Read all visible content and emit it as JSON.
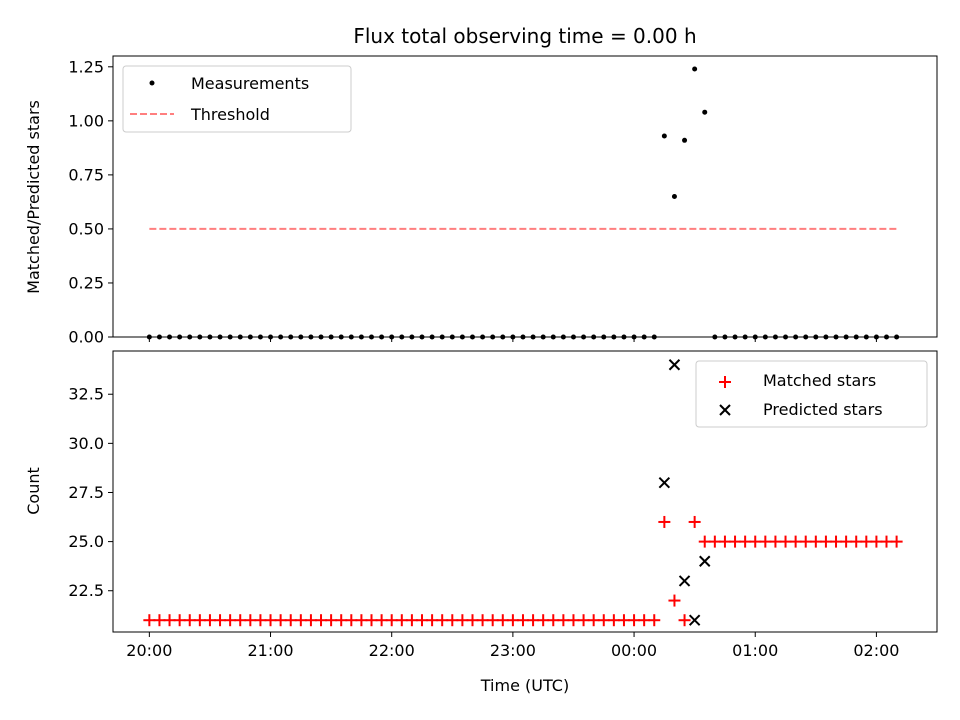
{
  "chart_data": [
    {
      "type": "scatter",
      "title": "Flux total observing time = 0.00 h",
      "xlabel": "",
      "ylabel": "Matched/Predicted stars",
      "xlim": [
        "19:42",
        "02:30"
      ],
      "ylim": [
        0,
        1.3
      ],
      "yticks": [
        "0.00",
        "0.25",
        "0.50",
        "0.75",
        "1.00",
        "1.25"
      ],
      "legend": "upper-left",
      "grid": false,
      "series": [
        {
          "name": "Measurements",
          "marker": "dot",
          "color": "#000000",
          "points": [
            [
              "20:00",
              0
            ],
            [
              "20:05",
              0
            ],
            [
              "20:10",
              0
            ],
            [
              "20:15",
              0
            ],
            [
              "20:20",
              0
            ],
            [
              "20:25",
              0
            ],
            [
              "20:30",
              0
            ],
            [
              "20:35",
              0
            ],
            [
              "20:40",
              0
            ],
            [
              "20:45",
              0
            ],
            [
              "20:50",
              0
            ],
            [
              "20:55",
              0
            ],
            [
              "21:00",
              0
            ],
            [
              "21:05",
              0
            ],
            [
              "21:10",
              0
            ],
            [
              "21:15",
              0
            ],
            [
              "21:20",
              0
            ],
            [
              "21:25",
              0
            ],
            [
              "21:30",
              0
            ],
            [
              "21:35",
              0
            ],
            [
              "21:40",
              0
            ],
            [
              "21:45",
              0
            ],
            [
              "21:50",
              0
            ],
            [
              "21:55",
              0
            ],
            [
              "22:00",
              0
            ],
            [
              "22:05",
              0
            ],
            [
              "22:10",
              0
            ],
            [
              "22:15",
              0
            ],
            [
              "22:20",
              0
            ],
            [
              "22:25",
              0
            ],
            [
              "22:30",
              0
            ],
            [
              "22:35",
              0
            ],
            [
              "22:40",
              0
            ],
            [
              "22:45",
              0
            ],
            [
              "22:50",
              0
            ],
            [
              "22:55",
              0
            ],
            [
              "23:00",
              0
            ],
            [
              "23:05",
              0
            ],
            [
              "23:10",
              0
            ],
            [
              "23:15",
              0
            ],
            [
              "23:20",
              0
            ],
            [
              "23:25",
              0
            ],
            [
              "23:30",
              0
            ],
            [
              "23:35",
              0
            ],
            [
              "23:40",
              0
            ],
            [
              "23:45",
              0
            ],
            [
              "23:50",
              0
            ],
            [
              "23:55",
              0
            ],
            [
              "00:00",
              0
            ],
            [
              "00:05",
              0
            ],
            [
              "00:10",
              0
            ],
            [
              "00:15",
              0.93
            ],
            [
              "00:20",
              0.65
            ],
            [
              "00:25",
              0.91
            ],
            [
              "00:30",
              1.24
            ],
            [
              "00:35",
              1.04
            ],
            [
              "00:40",
              0
            ],
            [
              "00:45",
              0
            ],
            [
              "00:50",
              0
            ],
            [
              "00:55",
              0
            ],
            [
              "01:00",
              0
            ],
            [
              "01:05",
              0
            ],
            [
              "01:10",
              0
            ],
            [
              "01:15",
              0
            ],
            [
              "01:20",
              0
            ],
            [
              "01:25",
              0
            ],
            [
              "01:30",
              0
            ],
            [
              "01:35",
              0
            ],
            [
              "01:40",
              0
            ],
            [
              "01:45",
              0
            ],
            [
              "01:50",
              0
            ],
            [
              "01:55",
              0
            ],
            [
              "02:00",
              0
            ],
            [
              "02:05",
              0
            ],
            [
              "02:10",
              0
            ]
          ]
        },
        {
          "name": "Threshold",
          "line": "dashed",
          "color": "#ff7f7f",
          "points": [
            [
              "20:00",
              0.5
            ],
            [
              "02:10",
              0.5
            ]
          ]
        }
      ]
    },
    {
      "type": "scatter",
      "title": "",
      "xlabel": "Time (UTC)",
      "ylabel": "Count",
      "xlim": [
        "19:42",
        "02:30"
      ],
      "ylim": [
        20.4,
        34.7
      ],
      "yticks": [
        "22.5",
        "25.0",
        "27.5",
        "30.0",
        "32.5"
      ],
      "xticks": [
        "20:00",
        "21:00",
        "22:00",
        "23:00",
        "00:00",
        "01:00",
        "02:00"
      ],
      "legend": "upper-right",
      "grid": false,
      "series": [
        {
          "name": "Matched stars",
          "marker": "plus",
          "color": "#ff0000",
          "points": [
            [
              "20:00",
              21
            ],
            [
              "20:05",
              21
            ],
            [
              "20:10",
              21
            ],
            [
              "20:15",
              21
            ],
            [
              "20:20",
              21
            ],
            [
              "20:25",
              21
            ],
            [
              "20:30",
              21
            ],
            [
              "20:35",
              21
            ],
            [
              "20:40",
              21
            ],
            [
              "20:45",
              21
            ],
            [
              "20:50",
              21
            ],
            [
              "20:55",
              21
            ],
            [
              "21:00",
              21
            ],
            [
              "21:05",
              21
            ],
            [
              "21:10",
              21
            ],
            [
              "21:15",
              21
            ],
            [
              "21:20",
              21
            ],
            [
              "21:25",
              21
            ],
            [
              "21:30",
              21
            ],
            [
              "21:35",
              21
            ],
            [
              "21:40",
              21
            ],
            [
              "21:45",
              21
            ],
            [
              "21:50",
              21
            ],
            [
              "21:55",
              21
            ],
            [
              "22:00",
              21
            ],
            [
              "22:05",
              21
            ],
            [
              "22:10",
              21
            ],
            [
              "22:15",
              21
            ],
            [
              "22:20",
              21
            ],
            [
              "22:25",
              21
            ],
            [
              "22:30",
              21
            ],
            [
              "22:35",
              21
            ],
            [
              "22:40",
              21
            ],
            [
              "22:45",
              21
            ],
            [
              "22:50",
              21
            ],
            [
              "22:55",
              21
            ],
            [
              "23:00",
              21
            ],
            [
              "23:05",
              21
            ],
            [
              "23:10",
              21
            ],
            [
              "23:15",
              21
            ],
            [
              "23:20",
              21
            ],
            [
              "23:25",
              21
            ],
            [
              "23:30",
              21
            ],
            [
              "23:35",
              21
            ],
            [
              "23:40",
              21
            ],
            [
              "23:45",
              21
            ],
            [
              "23:50",
              21
            ],
            [
              "23:55",
              21
            ],
            [
              "00:00",
              21
            ],
            [
              "00:05",
              21
            ],
            [
              "00:10",
              21
            ],
            [
              "00:15",
              26
            ],
            [
              "00:20",
              22
            ],
            [
              "00:25",
              21
            ],
            [
              "00:30",
              26
            ],
            [
              "00:35",
              25
            ],
            [
              "00:40",
              25
            ],
            [
              "00:45",
              25
            ],
            [
              "00:50",
              25
            ],
            [
              "00:55",
              25
            ],
            [
              "01:00",
              25
            ],
            [
              "01:05",
              25
            ],
            [
              "01:10",
              25
            ],
            [
              "01:15",
              25
            ],
            [
              "01:20",
              25
            ],
            [
              "01:25",
              25
            ],
            [
              "01:30",
              25
            ],
            [
              "01:35",
              25
            ],
            [
              "01:40",
              25
            ],
            [
              "01:45",
              25
            ],
            [
              "01:50",
              25
            ],
            [
              "01:55",
              25
            ],
            [
              "02:00",
              25
            ],
            [
              "02:05",
              25
            ],
            [
              "02:10",
              25
            ]
          ]
        },
        {
          "name": "Predicted stars",
          "marker": "x",
          "color": "#000000",
          "points": [
            [
              "00:15",
              28
            ],
            [
              "00:20",
              34
            ],
            [
              "00:25",
              23
            ],
            [
              "00:30",
              21
            ],
            [
              "00:35",
              24
            ]
          ]
        }
      ]
    }
  ]
}
